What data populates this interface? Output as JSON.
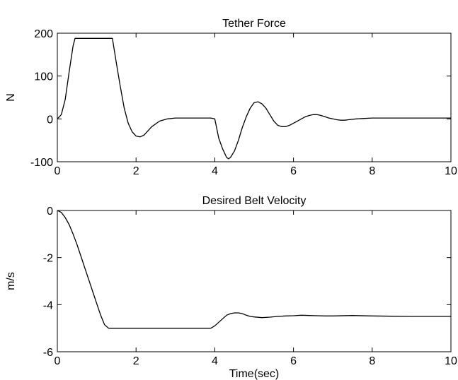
{
  "chart_data": [
    {
      "type": "line",
      "title": "Tether Force",
      "xlabel": "",
      "ylabel": "N",
      "xlim": [
        0,
        10
      ],
      "ylim": [
        -100,
        200
      ],
      "xticks": [
        0,
        2,
        4,
        6,
        8,
        10
      ],
      "yticks": [
        -100,
        0,
        100,
        200
      ],
      "grid": false,
      "series": [
        {
          "x": [
            0,
            0.1,
            0.2,
            0.3,
            0.4,
            0.45,
            1.4,
            1.5,
            1.6,
            1.7,
            1.8,
            1.9,
            2.0,
            2.1,
            2.2,
            2.3,
            2.4,
            2.6,
            2.8,
            3.0,
            3.2,
            3.5,
            3.7,
            3.9,
            4.0,
            4.1,
            4.2,
            4.3,
            4.35,
            4.4,
            4.5,
            4.6,
            4.7,
            4.8,
            4.9,
            5.0,
            5.1,
            5.2,
            5.3,
            5.4,
            5.5,
            5.6,
            5.7,
            5.8,
            5.9,
            6.0,
            6.1,
            6.2,
            6.3,
            6.4,
            6.5,
            6.6,
            6.7,
            6.8,
            6.9,
            7.0,
            7.1,
            7.2,
            7.3,
            7.4,
            7.6,
            7.8,
            8.0,
            8.5,
            9.0,
            10.0
          ],
          "y": [
            0,
            10,
            45,
            110,
            170,
            188,
            188,
            130,
            75,
            25,
            -10,
            -30,
            -40,
            -42,
            -38,
            -28,
            -18,
            -5,
            0,
            2,
            2,
            2,
            2,
            2,
            0,
            -45,
            -70,
            -90,
            -93,
            -90,
            -75,
            -50,
            -20,
            5,
            25,
            38,
            40,
            35,
            25,
            10,
            -5,
            -15,
            -18,
            -18,
            -15,
            -10,
            -5,
            0,
            5,
            8,
            10,
            10,
            8,
            5,
            2,
            0,
            -2,
            -3,
            -3,
            -2,
            0,
            1,
            2,
            2,
            2,
            2
          ]
        }
      ]
    },
    {
      "type": "line",
      "title": "Desired Belt Velocity",
      "xlabel": "Time(sec)",
      "ylabel": "m/s",
      "xlim": [
        0,
        10
      ],
      "ylim": [
        -6,
        0
      ],
      "xticks": [
        0,
        2,
        4,
        6,
        8,
        10
      ],
      "yticks": [
        -6,
        -4,
        -2,
        0
      ],
      "grid": false,
      "series": [
        {
          "x": [
            0,
            0.1,
            0.2,
            0.3,
            0.4,
            0.5,
            0.6,
            0.7,
            0.8,
            0.9,
            1.0,
            1.1,
            1.2,
            1.3,
            3.9,
            4.0,
            4.1,
            4.2,
            4.3,
            4.4,
            4.5,
            4.6,
            4.7,
            4.8,
            4.9,
            5.0,
            5.2,
            5.4,
            5.6,
            5.8,
            6.0,
            6.2,
            6.4,
            6.6,
            6.8,
            7.0,
            7.5,
            8.0,
            8.5,
            9.0,
            10.0
          ],
          "y": [
            0,
            -0.08,
            -0.3,
            -0.6,
            -1.0,
            -1.45,
            -1.95,
            -2.45,
            -2.95,
            -3.45,
            -3.95,
            -4.45,
            -4.85,
            -5.0,
            -5.0,
            -4.9,
            -4.75,
            -4.6,
            -4.45,
            -4.38,
            -4.35,
            -4.35,
            -4.38,
            -4.45,
            -4.5,
            -4.52,
            -4.55,
            -4.53,
            -4.5,
            -4.48,
            -4.47,
            -4.45,
            -4.46,
            -4.47,
            -4.48,
            -4.48,
            -4.46,
            -4.48,
            -4.49,
            -4.5,
            -4.5
          ]
        }
      ]
    }
  ]
}
